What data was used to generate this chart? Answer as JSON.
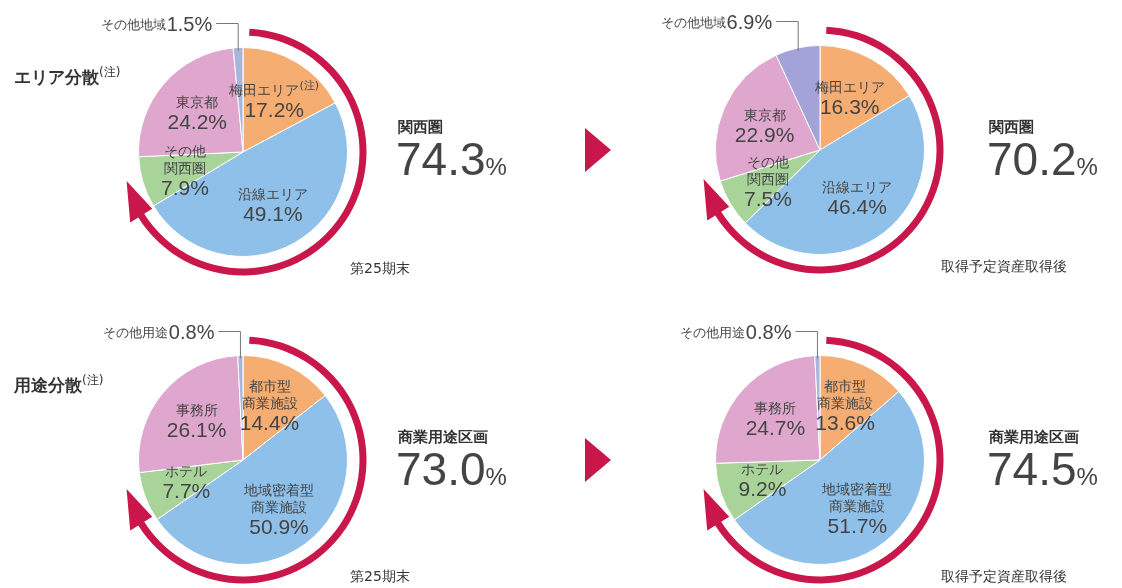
{
  "chart_data": [
    {
      "type": "pie",
      "title": "エリア分散$^{(注)}$",
      "categories": [
        "梅田エリア$^{(注)}$",
        "沿線エリア",
        "その他関西圏",
        "東京都",
        "その他地域"
      ],
      "values": [
        17.2,
        49.1,
        7.9,
        24.2,
        1.5
      ],
      "value_labels": [
        "17.2%",
        "49.1%",
        "7.9%",
        "24.2%",
        "1.5%"
      ],
      "colors": [
        "#f5ad72",
        "#8fc0ea",
        "#a8d49a",
        "#dfa7cd",
        "#a9b6dc"
      ],
      "annotations": [
        "関西圏",
        "74.3%",
        "第25期末"
      ]
    },
    {
      "type": "pie",
      "categories": [
        "梅田エリア",
        "沿線エリア",
        "その他関西圏",
        "東京都",
        "その他地域"
      ],
      "values": [
        16.3,
        46.4,
        7.5,
        22.9,
        6.9
      ],
      "value_labels": [
        "16.3%",
        "46.4%",
        "7.5%",
        "22.9%",
        "6.9%"
      ],
      "colors": [
        "#f5ad72",
        "#8fc0ea",
        "#a8d49a",
        "#dfa7cd",
        "#a3a2d9"
      ],
      "annotations": [
        "関西圏",
        "70.2%",
        "取得予定資産取得後"
      ]
    },
    {
      "type": "pie",
      "title": "用途分散$^{(注)}$",
      "categories": [
        "都市型商業施設",
        "地域密着型商業施設",
        "ホテル",
        "事務所",
        "その他用途"
      ],
      "values": [
        14.4,
        50.9,
        7.7,
        26.1,
        0.8
      ],
      "value_labels": [
        "14.4%",
        "50.9%",
        "7.7%",
        "26.1%",
        "0.8%"
      ],
      "colors": [
        "#f5ad72",
        "#8fc0ea",
        "#a8d49a",
        "#dfa7cd",
        "#a9b6dc"
      ],
      "annotations": [
        "商業用途区画",
        "73.0%",
        "第25期末"
      ]
    },
    {
      "type": "pie",
      "categories": [
        "都市型商業施設",
        "地域密着型商業施設",
        "ホテル",
        "事務所",
        "その他用途"
      ],
      "values": [
        13.6,
        51.7,
        9.2,
        24.7,
        0.8
      ],
      "value_labels": [
        "13.6%",
        "51.7%",
        "9.2%",
        "24.7%",
        "0.8%"
      ],
      "colors": [
        "#f5ad72",
        "#8fc0ea",
        "#a8d49a",
        "#dfa7cd",
        "#a9b6dc"
      ],
      "annotations": [
        "商業用途区画",
        "74.5%",
        "取得予定資産取得後"
      ]
    }
  ]
}
